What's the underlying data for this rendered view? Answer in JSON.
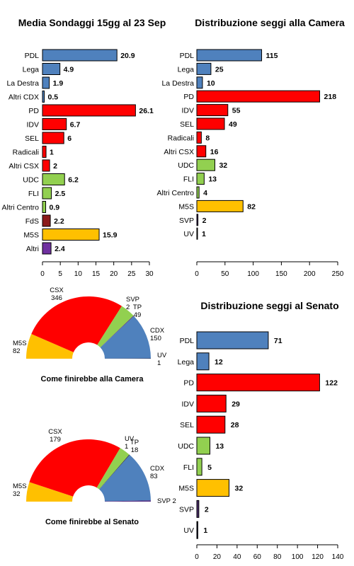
{
  "chart_data": [
    {
      "id": "polls",
      "type": "bar",
      "orientation": "horizontal",
      "title": "Media Sondaggi 15gg al 23 Sep",
      "categories": [
        "PDL",
        "Lega",
        "La Destra",
        "Altri CDX",
        "PD",
        "IDV",
        "SEL",
        "Radicali",
        "Altri CSX",
        "UDC",
        "FLI",
        "Altri Centro",
        "FdS",
        "M5S",
        "Altri"
      ],
      "values": [
        20.9,
        4.9,
        1.9,
        0.5,
        26.1,
        6.7,
        6,
        1,
        2,
        6.2,
        2.5,
        0.9,
        2.2,
        15.9,
        2.4
      ],
      "value_labels": [
        "20.9",
        "4.9",
        "1.9",
        "0.5",
        "26.1",
        "6.7",
        "6",
        "1",
        "2",
        "6.2",
        "2.5",
        "0.9",
        "2.2",
        "15.9",
        "2.4"
      ],
      "colors": [
        "#4f81bd",
        "#4f81bd",
        "#4f81bd",
        "#4f81bd",
        "#ff0000",
        "#ff0000",
        "#ff0000",
        "#ff0000",
        "#ff0000",
        "#92d050",
        "#92d050",
        "#92d050",
        "#8b1a1a",
        "#ffc000",
        "#7030a0"
      ],
      "xlim": [
        0,
        30
      ],
      "xticks": [
        0,
        5,
        10,
        15,
        20,
        25,
        30
      ],
      "xlabel": "",
      "ylabel": "",
      "grid": false
    },
    {
      "id": "camera",
      "type": "bar",
      "orientation": "horizontal",
      "title": "Distribuzione seggi alla Camera",
      "categories": [
        "PDL",
        "Lega",
        "La Destra",
        "PD",
        "IDV",
        "SEL",
        "Radicali",
        "Altri CSX",
        "UDC",
        "FLI",
        "Altri Centro",
        "M5S",
        "SVP",
        "UV"
      ],
      "values": [
        115,
        25,
        10,
        218,
        55,
        49,
        8,
        16,
        32,
        13,
        4,
        82,
        2,
        1
      ],
      "value_labels": [
        "115",
        "25",
        "10",
        "218",
        "55",
        "49",
        "8",
        "16",
        "32",
        "13",
        "4",
        "82",
        "2",
        "1"
      ],
      "colors": [
        "#4f81bd",
        "#4f81bd",
        "#4f81bd",
        "#ff0000",
        "#ff0000",
        "#ff0000",
        "#ff0000",
        "#ff0000",
        "#92d050",
        "#92d050",
        "#92d050",
        "#ffc000",
        "#4b2d6b",
        "#1f1f3f"
      ],
      "xlim": [
        0,
        250
      ],
      "xticks": [
        0,
        50,
        100,
        150,
        200,
        250
      ],
      "xlabel": "",
      "ylabel": "",
      "grid": false
    },
    {
      "id": "senato",
      "type": "bar",
      "orientation": "horizontal",
      "title": "Distribuzione seggi al Senato",
      "categories": [
        "PDL",
        "Lega",
        "PD",
        "IDV",
        "SEL",
        "UDC",
        "FLI",
        "M5S",
        "SVP",
        "UV"
      ],
      "values": [
        71,
        12,
        122,
        29,
        28,
        13,
        5,
        32,
        2,
        1
      ],
      "value_labels": [
        "71",
        "12",
        "122",
        "29",
        "28",
        "13",
        "5",
        "32",
        "2",
        "1"
      ],
      "colors": [
        "#4f81bd",
        "#4f81bd",
        "#ff0000",
        "#ff0000",
        "#ff0000",
        "#92d050",
        "#92d050",
        "#ffc000",
        "#4b2d6b",
        "#1f1f3f"
      ],
      "xlim": [
        0,
        140
      ],
      "xticks": [
        0,
        20,
        40,
        60,
        80,
        100,
        120,
        140
      ],
      "xlabel": "",
      "ylabel": "",
      "grid": false
    },
    {
      "id": "pie_camera",
      "type": "pie",
      "shape": "half-donut",
      "title": "Come finirebbe alla Camera",
      "total_seats": 630,
      "slices": [
        {
          "name": "M5S",
          "value": 82,
          "label": "M5S\n82",
          "color": "#ffc000"
        },
        {
          "name": "CSX",
          "value": 346,
          "label": "CSX\n346",
          "color": "#ff0000"
        },
        {
          "name": "TP",
          "value": 49,
          "label": "TP\n49",
          "color": "#92d050"
        },
        {
          "name": "SVP",
          "value": 2,
          "label": "SVP\n2",
          "color": "#4f2d7f"
        },
        {
          "name": "CDX",
          "value": 150,
          "label": "CDX\n150",
          "color": "#4f81bd"
        },
        {
          "name": "UV",
          "value": 1,
          "label": "UV\n1",
          "color": "#1f1f3f"
        }
      ]
    },
    {
      "id": "pie_senato",
      "type": "pie",
      "shape": "half-donut",
      "title": "Come finirebbe al Senato",
      "total_seats": 315,
      "slices": [
        {
          "name": "M5S",
          "value": 32,
          "label": "M5S\n32",
          "color": "#ffc000"
        },
        {
          "name": "CSX",
          "value": 179,
          "label": "CSX\n179",
          "color": "#ff0000"
        },
        {
          "name": "TP",
          "value": 18,
          "label": "TP\n18",
          "color": "#92d050"
        },
        {
          "name": "UV",
          "value": 1,
          "label": "UV\n1",
          "color": "#1f1f3f"
        },
        {
          "name": "CDX",
          "value": 83,
          "label": "CDX\n83",
          "color": "#4f81bd"
        },
        {
          "name": "SVP",
          "value": 2,
          "label": "SVP 2",
          "color": "#4f2d7f"
        }
      ]
    }
  ]
}
